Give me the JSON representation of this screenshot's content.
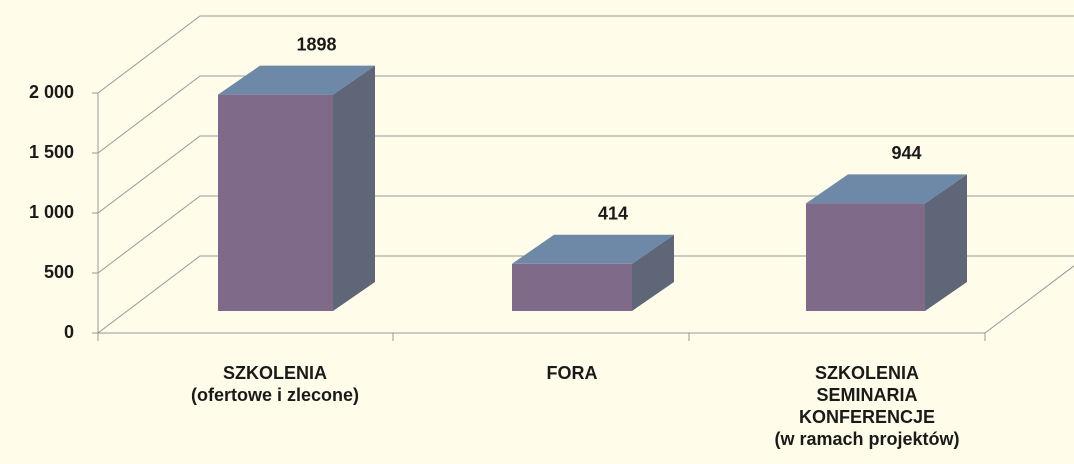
{
  "chart_data": {
    "type": "bar3d",
    "categories": [
      "SZKOLENIA\n(ofertowe i zlecone)",
      "FORA",
      "SZKOLENIA\nSEMINARIA\nKONFERENCJE\n(w ramach projektów)"
    ],
    "values": [
      1898,
      414,
      944
    ],
    "color": "#7f6a89",
    "ylim": [
      0,
      2000
    ],
    "yticks": [
      0,
      500,
      {
        "value": 1000,
        "label": "1 000"
      },
      {
        "value": 1500,
        "label": "1 500"
      },
      {
        "value": 2000,
        "label": "2 000"
      }
    ],
    "grid": true
  }
}
